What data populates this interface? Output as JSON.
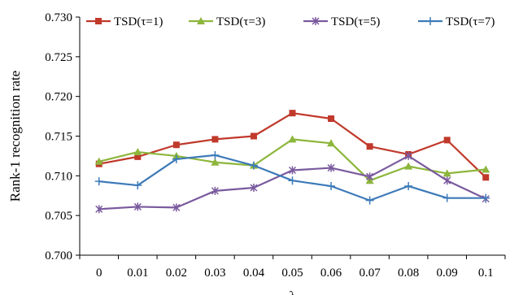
{
  "chart_data": {
    "type": "line",
    "xlabel": "λ",
    "ylabel": "Rank-1 recognition rate",
    "categories": [
      "0",
      "0.01",
      "0.02",
      "0.03",
      "0.04",
      "0.05",
      "0.06",
      "0.07",
      "0.08",
      "0.09",
      "0.1"
    ],
    "ylim": [
      0.7,
      0.73
    ],
    "yticks": [
      "0.700",
      "0.705",
      "0.710",
      "0.715",
      "0.720",
      "0.725",
      "0.730"
    ],
    "grid": false,
    "legend_position": "top",
    "series": [
      {
        "name": "TSD(τ=1)",
        "color": "#c0392b",
        "marker": "square",
        "values": [
          0.7115,
          0.7124,
          0.7139,
          0.7146,
          0.715,
          0.7179,
          0.7172,
          0.7137,
          0.7127,
          0.7145,
          0.7098
        ]
      },
      {
        "name": "TSD(τ=3)",
        "color": "#8db63c",
        "marker": "triangle",
        "values": [
          0.7118,
          0.713,
          0.7125,
          0.7117,
          0.7113,
          0.7146,
          0.7141,
          0.7094,
          0.7112,
          0.7103,
          0.7108
        ]
      },
      {
        "name": "TSD(τ=5)",
        "color": "#7a5a9e",
        "marker": "asterisk",
        "values": [
          0.7058,
          0.7061,
          0.706,
          0.7081,
          0.7085,
          0.7107,
          0.711,
          0.7099,
          0.7125,
          0.7094,
          0.7071
        ]
      },
      {
        "name": "TSD(τ=7)",
        "color": "#3d7ab8",
        "marker": "plus",
        "values": [
          0.7093,
          0.7088,
          0.7121,
          0.7126,
          0.7113,
          0.7094,
          0.7087,
          0.7069,
          0.7087,
          0.7072,
          0.7072
        ]
      }
    ]
  }
}
